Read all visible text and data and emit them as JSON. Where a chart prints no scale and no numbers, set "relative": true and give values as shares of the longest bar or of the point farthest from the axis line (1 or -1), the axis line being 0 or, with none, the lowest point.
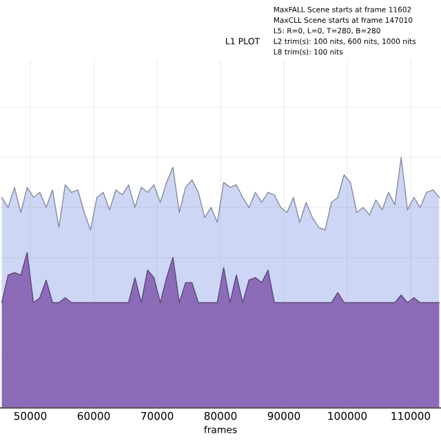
{
  "chart_data": {
    "type": "area",
    "title": "L1 PLOT",
    "xlabel": "frames",
    "relative": true,
    "annotations": [
      "MaxFALL Scene starts at frame 11602",
      "MaxCLL Scene starts at frame 147010",
      "L5: R=0, L=0, T=280, B=280",
      "L2 trim(s): 100 nits, 600 nits, 1000 nits",
      "L8 trim(s): 100 nits"
    ],
    "x": [
      45500,
      46500,
      47500,
      48500,
      49500,
      50500,
      51500,
      52500,
      53500,
      54500,
      55500,
      56500,
      57500,
      58500,
      59500,
      60500,
      61500,
      62500,
      63500,
      64500,
      65500,
      66500,
      67500,
      68500,
      69500,
      70500,
      71500,
      72500,
      73500,
      74500,
      75500,
      76500,
      77500,
      78500,
      79500,
      80500,
      81500,
      82500,
      83500,
      84500,
      85500,
      86500,
      87500,
      88500,
      89500,
      90500,
      91500,
      92500,
      93500,
      94500,
      95500,
      96500,
      97500,
      98500,
      99500,
      100500,
      101500,
      102500,
      103500,
      104500,
      105500,
      106500,
      107500,
      108500,
      109500,
      110500,
      111500,
      112500,
      113500,
      114500
    ],
    "series": [
      {
        "color": "#cdd6f5",
        "values": [
          0.84,
          0.8,
          0.88,
          0.78,
          0.88,
          0.84,
          0.86,
          0.8,
          0.87,
          0.72,
          0.89,
          0.86,
          0.87,
          0.78,
          0.71,
          0.84,
          0.86,
          0.79,
          0.87,
          0.85,
          0.89,
          0.8,
          0.88,
          0.86,
          0.89,
          0.82,
          0.9,
          0.96,
          0.78,
          0.88,
          0.91,
          0.86,
          0.76,
          0.8,
          0.74,
          0.9,
          0.88,
          0.89,
          0.84,
          0.8,
          0.86,
          0.82,
          0.86,
          0.85,
          0.8,
          0.78,
          0.84,
          0.74,
          0.82,
          0.76,
          0.72,
          0.71,
          0.82,
          0.84,
          0.93,
          0.9,
          0.78,
          0.8,
          0.77,
          0.83,
          0.79,
          0.86,
          0.81,
          1.0,
          0.79,
          0.84,
          0.8,
          0.86,
          0.87,
          0.84
        ]
      },
      {
        "color": "#8c6cb9",
        "values": [
          0.42,
          0.53,
          0.54,
          0.53,
          0.62,
          0.42,
          0.44,
          0.51,
          0.42,
          0.42,
          0.44,
          0.42,
          0.42,
          0.42,
          0.42,
          0.42,
          0.42,
          0.42,
          0.42,
          0.42,
          0.42,
          0.52,
          0.42,
          0.55,
          0.52,
          0.42,
          0.52,
          0.6,
          0.42,
          0.5,
          0.5,
          0.42,
          0.42,
          0.42,
          0.42,
          0.56,
          0.42,
          0.53,
          0.42,
          0.51,
          0.52,
          0.5,
          0.55,
          0.42,
          0.42,
          0.42,
          0.42,
          0.42,
          0.42,
          0.42,
          0.42,
          0.42,
          0.42,
          0.46,
          0.42,
          0.42,
          0.42,
          0.42,
          0.42,
          0.42,
          0.42,
          0.42,
          0.42,
          0.45,
          0.42,
          0.44,
          0.42,
          0.42,
          0.42,
          0.42
        ]
      }
    ],
    "xlim": [
      45217,
      114783
    ],
    "xticks": [
      50000,
      60000,
      70000,
      80000,
      90000,
      100000,
      110000
    ],
    "grid": true,
    "tick_labels": "x"
  }
}
